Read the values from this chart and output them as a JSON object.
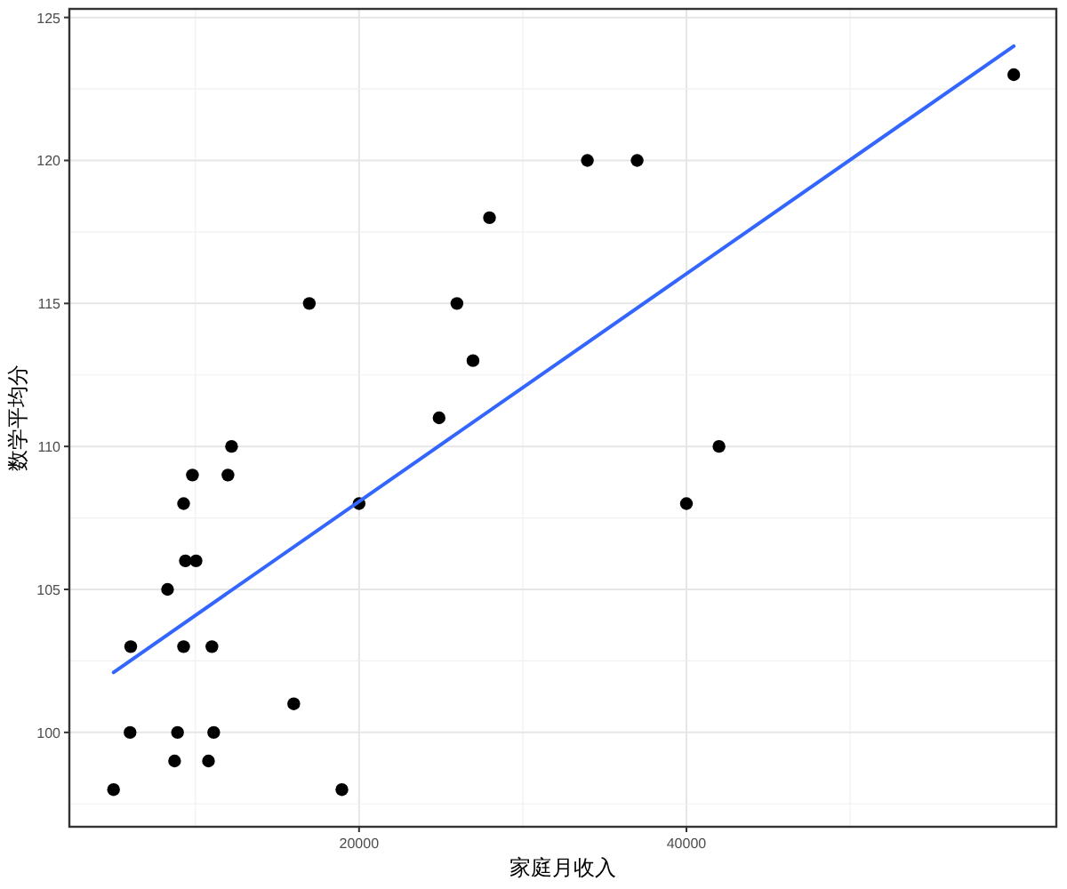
{
  "chart_data": {
    "type": "scatter",
    "xlabel": "家庭月收入",
    "ylabel": "数学平均分",
    "xlim": [
      2300,
      62600
    ],
    "ylim": [
      96.7,
      125.3
    ],
    "xticks": [
      20000,
      40000
    ],
    "yticks": [
      100,
      105,
      110,
      115,
      120,
      125
    ],
    "grid": true,
    "series": [
      {
        "color": "#000000",
        "marker": "circle",
        "x": [
          5000,
          6050,
          6010,
          8300,
          8730,
          8910,
          9280,
          9280,
          9390,
          9820,
          10040,
          10800,
          11010,
          11120,
          11990,
          12210,
          16010,
          16960,
          18950,
          20000,
          24890,
          25980,
          26960,
          27970,
          33950,
          36990,
          40000,
          41990,
          60000
        ],
        "values": [
          98,
          103,
          100,
          105,
          99,
          100,
          108,
          103,
          106,
          109,
          106,
          99,
          103,
          100,
          109,
          110,
          101,
          115,
          98,
          108,
          111,
          115,
          113,
          118,
          120,
          120,
          108,
          110,
          123
        ]
      },
      {
        "type": "line",
        "color": "#3366ff",
        "marker": "none",
        "line_style": "solid",
        "x": [
          5000,
          60000
        ],
        "values": [
          102.1,
          124.0
        ]
      }
    ]
  }
}
